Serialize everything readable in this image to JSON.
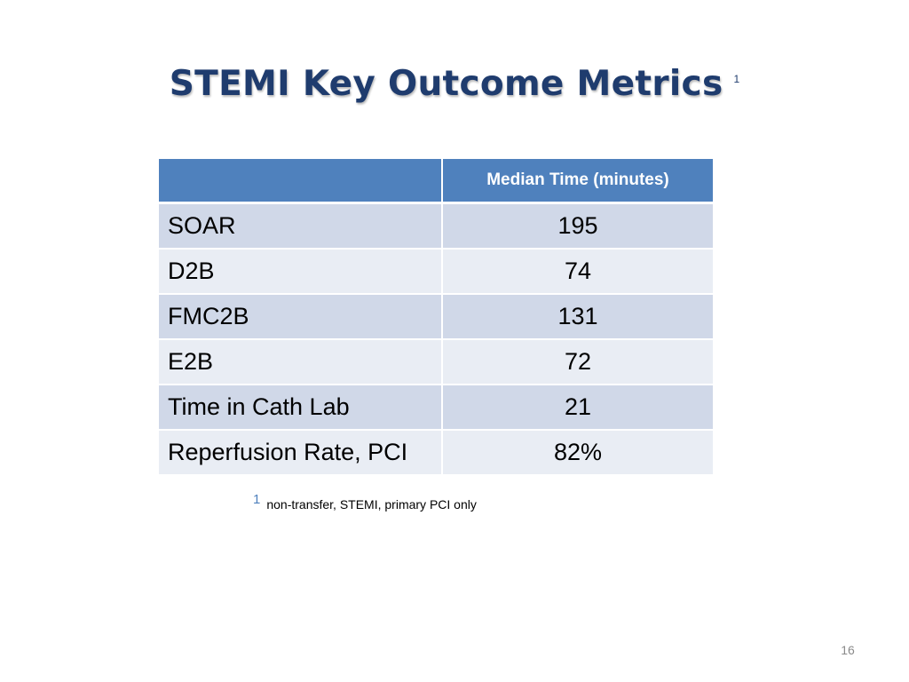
{
  "slide": {
    "title": "STEMI Key Outcome Metrics",
    "title_superscript": "1",
    "page_number": "16"
  },
  "table": {
    "headers": [
      "",
      "Median Time (minutes)"
    ],
    "rows": [
      {
        "metric": "SOAR",
        "value": "195"
      },
      {
        "metric": "D2B",
        "value": "74"
      },
      {
        "metric": "FMC2B",
        "value": "131"
      },
      {
        "metric": "E2B",
        "value": "72"
      },
      {
        "metric": "Time in Cath Lab",
        "value": "21"
      },
      {
        "metric": "Reperfusion Rate, PCI",
        "value": "82%"
      }
    ]
  },
  "footnote": {
    "marker": "1",
    "text": "non-transfer, STEMI, primary PCI only"
  },
  "colors": {
    "title": "#1f3c6e",
    "header_fill": "#4f81bd",
    "row_band_dark": "#d0d8e8",
    "row_band_light": "#e9edf4"
  }
}
